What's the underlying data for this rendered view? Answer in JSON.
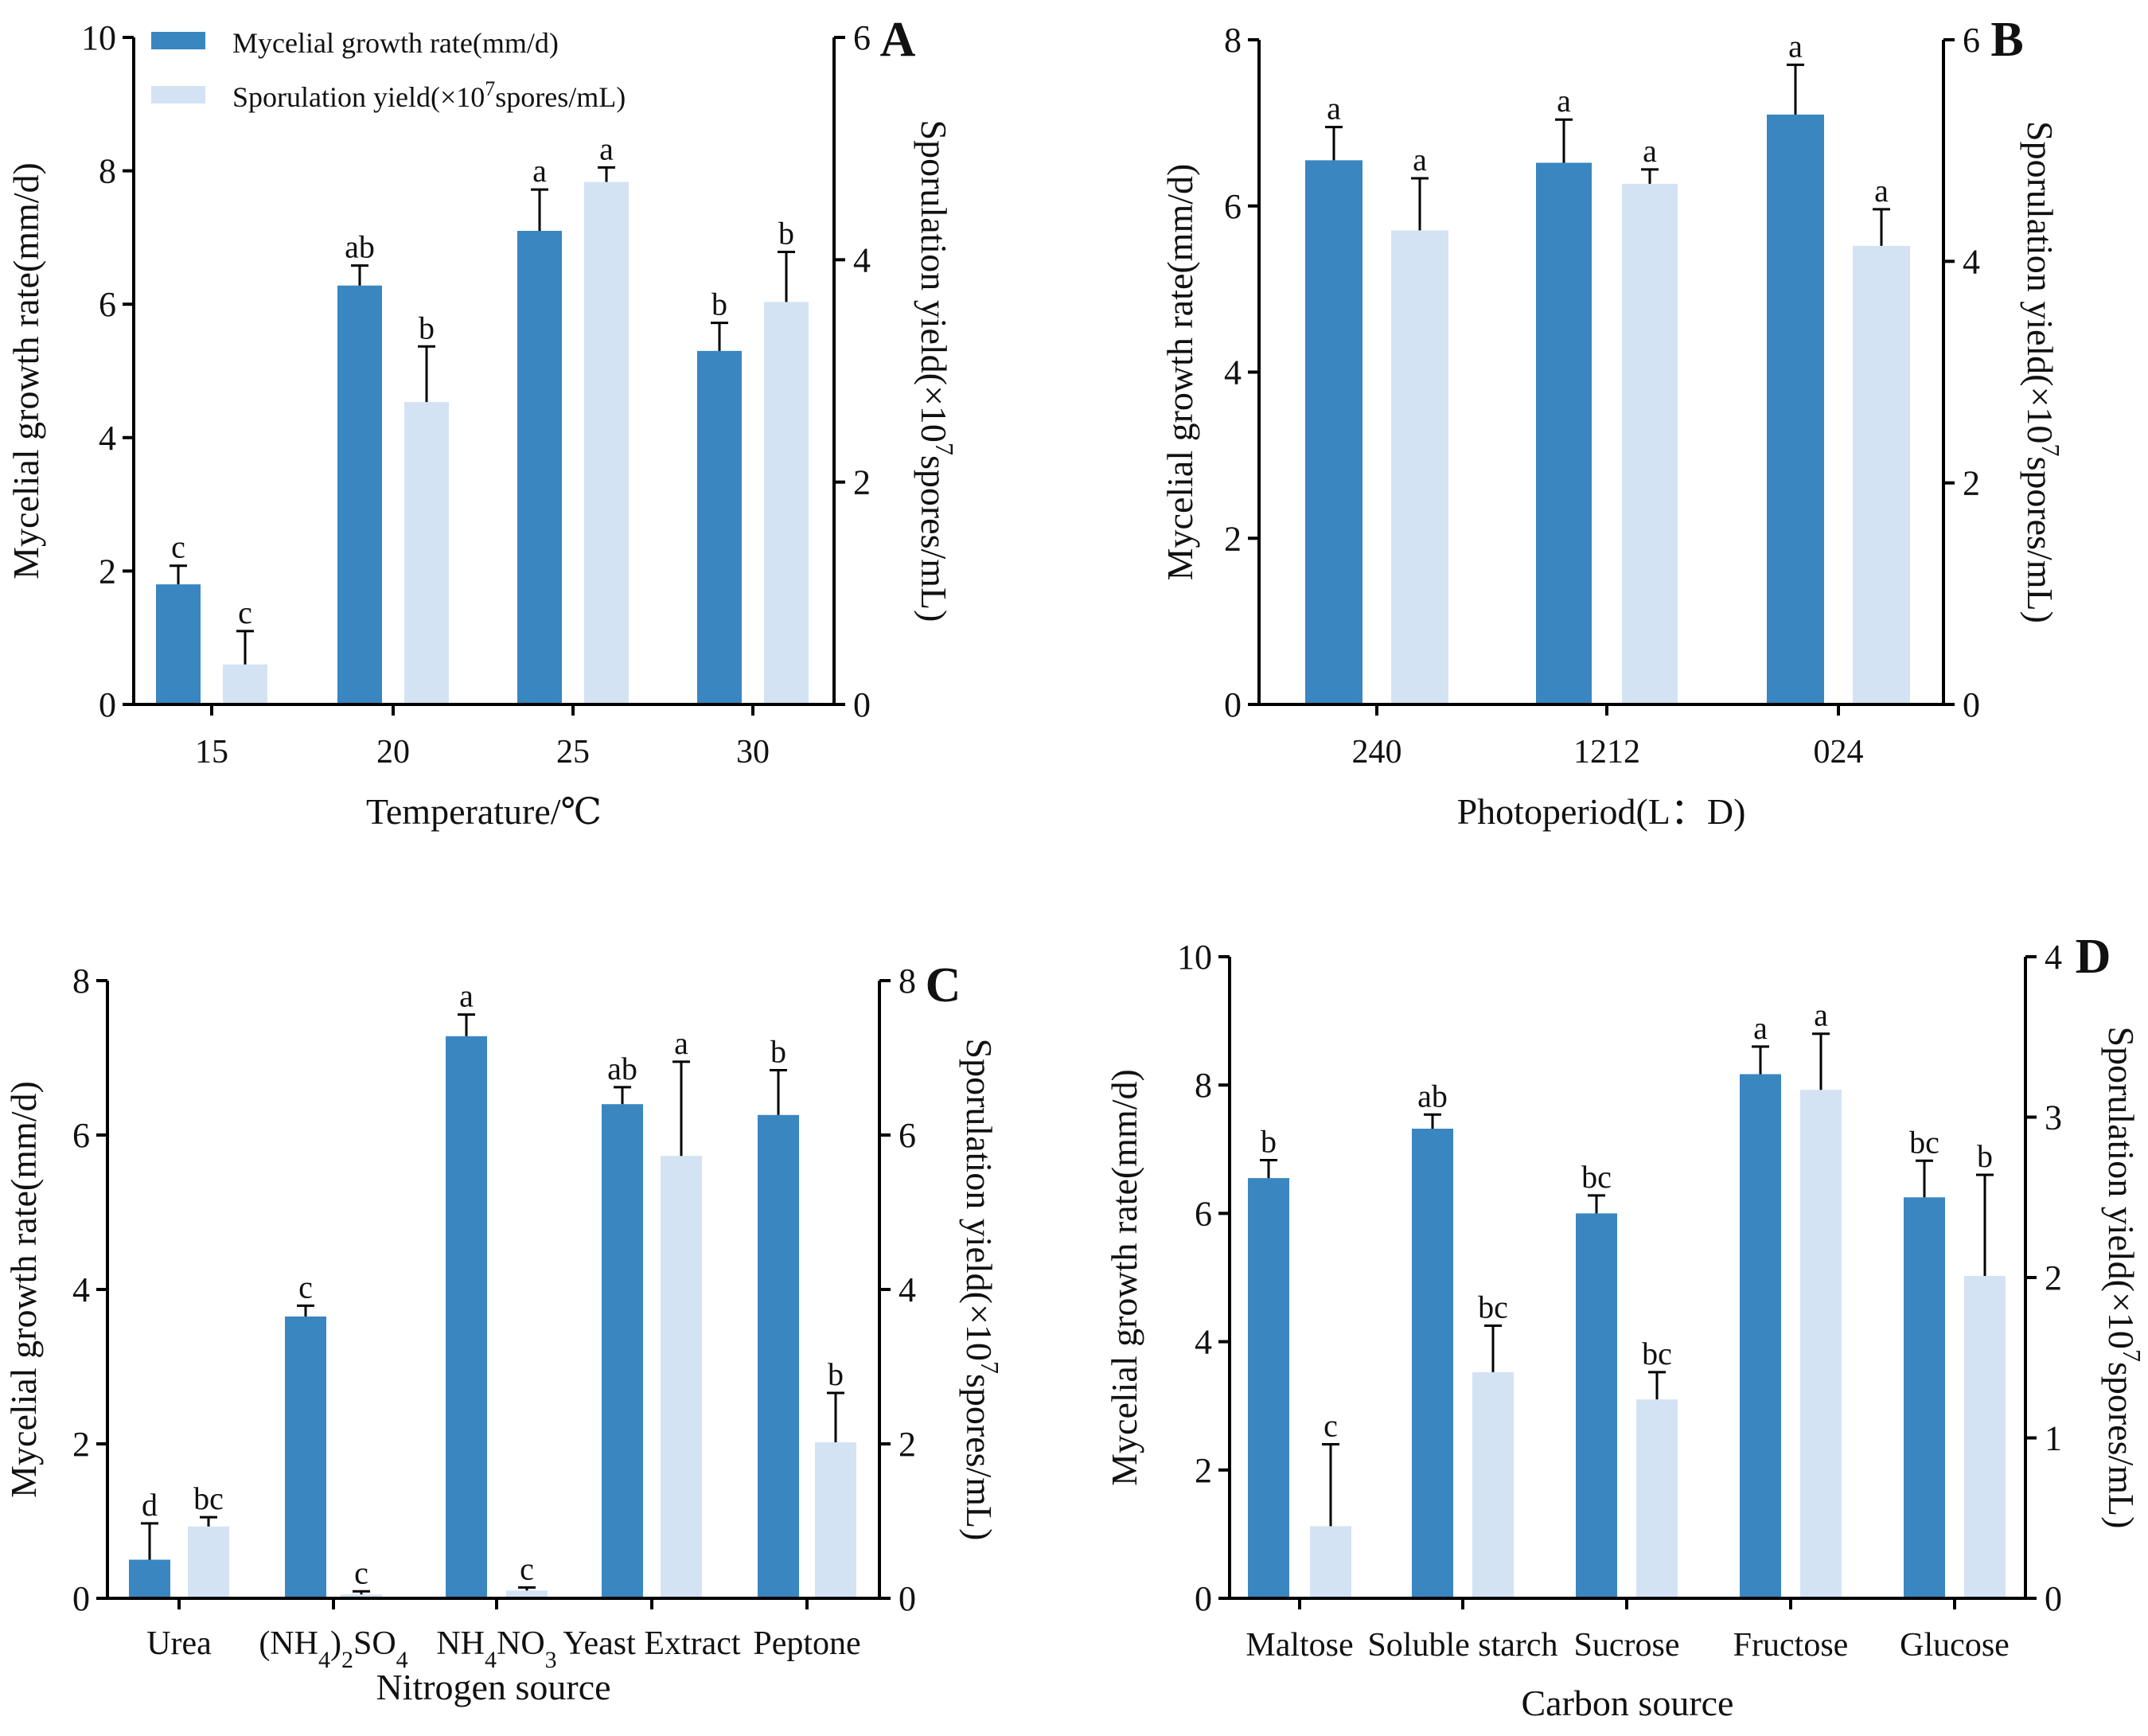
{
  "colors": {
    "growth": "#3a86c0",
    "sporulation": "#d3e3f3"
  },
  "legend": {
    "growth_label": "Mycelial growth rate(mm/d)",
    "sporulation_prefix": "Sporulation yield(×10",
    "sporulation_exp": "7",
    "sporulation_suffix": "spores/mL)"
  },
  "chart_data": [
    {
      "panel": "A",
      "type": "bar",
      "xlabel": "Temperature/℃",
      "ylabel": "Mycelial growth rate(mm/d)",
      "y2label_prefix": "Sporulation yield(×10",
      "y2label_exp": "7",
      "y2label_suffix": "spores/mL)",
      "categories": [
        "15",
        "20",
        "25",
        "30"
      ],
      "ylim": [
        0,
        10
      ],
      "yticks": [
        0,
        2,
        4,
        6,
        8,
        10
      ],
      "y2lim": [
        0,
        6
      ],
      "y2ticks": [
        0,
        2,
        4,
        6
      ],
      "series": [
        {
          "name": "Mycelial growth rate(mm/d)",
          "axis": "left",
          "values": [
            1.8,
            6.28,
            7.1,
            5.3
          ],
          "errors": [
            0.28,
            0.3,
            0.62,
            0.42
          ],
          "letters": [
            "c",
            "ab",
            "a",
            "b"
          ]
        },
        {
          "name": "Sporulation yield(×107spores/mL)",
          "axis": "right",
          "values": [
            0.36,
            2.72,
            4.7,
            3.62
          ],
          "errors": [
            0.3,
            0.5,
            0.13,
            0.45
          ],
          "letters": [
            "c",
            "b",
            "a",
            "b"
          ]
        }
      ]
    },
    {
      "panel": "B",
      "type": "bar",
      "xlabel": "Photoperiod(L：D)",
      "ylabel": "Mycelial growth rate(mm/d)",
      "y2label_prefix": "Sporulation yield(×10",
      "y2label_exp": "7",
      "y2label_suffix": "spores/mL)",
      "categories": [
        "24:0",
        "12:12",
        "0:24"
      ],
      "ylim": [
        0,
        8
      ],
      "yticks": [
        0,
        2,
        4,
        6,
        8
      ],
      "y2lim": [
        0,
        6
      ],
      "y2ticks": [
        0,
        2,
        4,
        6
      ],
      "series": [
        {
          "name": "Mycelial growth rate(mm/d)",
          "axis": "left",
          "values": [
            6.55,
            6.52,
            7.1
          ],
          "errors": [
            0.4,
            0.52,
            0.6
          ],
          "letters": [
            "a",
            "a",
            "a"
          ]
        },
        {
          "name": "Sporulation yield(×107spores/mL)",
          "axis": "right",
          "values": [
            4.28,
            4.7,
            4.14
          ],
          "errors": [
            0.47,
            0.13,
            0.33
          ],
          "letters": [
            "a",
            "a",
            "a"
          ]
        }
      ]
    },
    {
      "panel": "C",
      "type": "bar",
      "xlabel": "Nitrogen source",
      "ylabel": "Mycelial growth rate(mm/d)",
      "y2label_prefix": "Sporulation yield(×10",
      "y2label_exp": "7",
      "y2label_suffix": "spores/mL)",
      "categories": [
        "Urea",
        "(NH4)2SO4",
        "NH4NO3",
        "Yeast Extract",
        "Peptone"
      ],
      "ylim": [
        0,
        8
      ],
      "yticks": [
        0,
        2,
        4,
        6,
        8
      ],
      "y2lim": [
        0,
        8
      ],
      "y2ticks": [
        0,
        2,
        4,
        6,
        8
      ],
      "series": [
        {
          "name": "Mycelial growth rate(mm/d)",
          "axis": "left",
          "values": [
            0.5,
            3.65,
            7.28,
            6.4,
            6.26
          ],
          "errors": [
            0.47,
            0.14,
            0.28,
            0.22,
            0.58
          ],
          "letters": [
            "d",
            "c",
            "a",
            "ab",
            "b"
          ]
        },
        {
          "name": "Sporulation yield(×107spores/mL)",
          "axis": "right",
          "values": [
            0.93,
            0.05,
            0.1,
            5.73,
            2.02
          ],
          "errors": [
            0.12,
            0.04,
            0.04,
            1.22,
            0.64
          ],
          "letters": [
            "bc",
            "c",
            "c",
            "a",
            "b"
          ]
        }
      ]
    },
    {
      "panel": "D",
      "type": "bar",
      "xlabel": "Carbon source",
      "ylabel": "Mycelial growth rate(mm/d)",
      "y2label_prefix": "Sporulation yield(×10",
      "y2label_exp": "7",
      "y2label_suffix": "spores/mL)",
      "categories": [
        "Maltose",
        "Soluble starch",
        "Sucrose",
        "Fructose",
        "Glucose"
      ],
      "ylim": [
        0,
        10
      ],
      "yticks": [
        0,
        2,
        4,
        6,
        8,
        10
      ],
      "y2lim": [
        0,
        4
      ],
      "y2ticks": [
        0,
        1,
        2,
        3,
        4
      ],
      "series": [
        {
          "name": "Mycelial growth rate(mm/d)",
          "axis": "left",
          "values": [
            6.55,
            7.32,
            6.0,
            8.17,
            6.25
          ],
          "errors": [
            0.28,
            0.22,
            0.28,
            0.43,
            0.57
          ],
          "letters": [
            "b",
            "ab",
            "bc",
            "a",
            "bc"
          ]
        },
        {
          "name": "Sporulation yield(×107spores/mL)",
          "axis": "right",
          "values": [
            0.45,
            1.41,
            1.24,
            3.17,
            2.01
          ],
          "errors": [
            0.51,
            0.29,
            0.17,
            0.35,
            0.63
          ],
          "letters": [
            "c",
            "bc",
            "bc",
            "a",
            "b"
          ]
        }
      ]
    }
  ]
}
